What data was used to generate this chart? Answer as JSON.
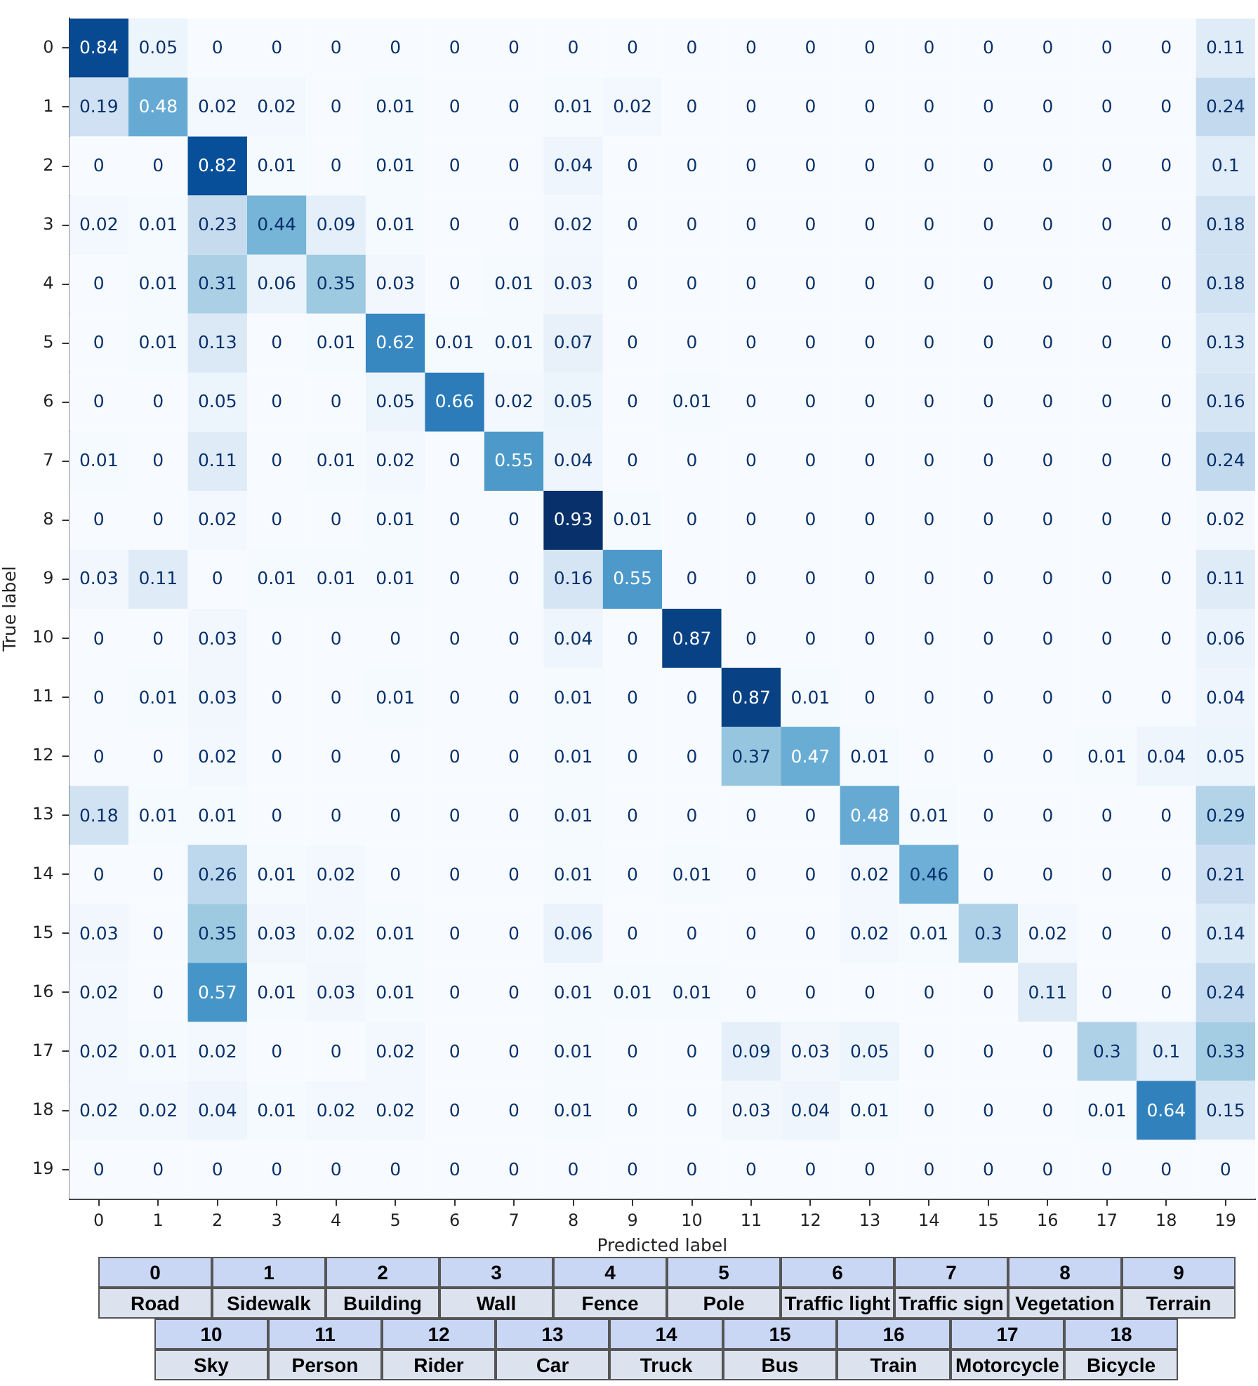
{
  "chart_data": {
    "type": "heatmap",
    "xlabel": "Predicted label",
    "ylabel": "True label",
    "categories": [
      "0",
      "1",
      "2",
      "3",
      "4",
      "5",
      "6",
      "7",
      "8",
      "9",
      "10",
      "11",
      "12",
      "13",
      "14",
      "15",
      "16",
      "17",
      "18",
      "19"
    ],
    "y_categories": [
      "0",
      "1",
      "2",
      "3",
      "4",
      "5",
      "6",
      "7",
      "8",
      "9",
      "10",
      "11",
      "12",
      "13",
      "14",
      "15",
      "16",
      "17",
      "18",
      "19"
    ],
    "cells": [
      [
        0.84,
        0.05,
        0,
        0,
        0,
        0,
        0,
        0,
        0,
        0,
        0,
        0,
        0,
        0,
        0,
        0,
        0,
        0,
        0,
        0.11
      ],
      [
        0.19,
        0.48,
        0.02,
        0.02,
        0,
        0.01,
        0,
        0,
        0.01,
        0.02,
        0,
        0,
        0,
        0,
        0,
        0,
        0,
        0,
        0,
        0.24
      ],
      [
        0,
        0,
        0.82,
        0.01,
        0,
        0.01,
        0,
        0,
        0.04,
        0,
        0,
        0,
        0,
        0,
        0,
        0,
        0,
        0,
        0,
        0.1
      ],
      [
        0.02,
        0.01,
        0.23,
        0.44,
        0.09,
        0.01,
        0,
        0,
        0.02,
        0,
        0,
        0,
        0,
        0,
        0,
        0,
        0,
        0,
        0,
        0.18
      ],
      [
        0,
        0.01,
        0.31,
        0.06,
        0.35,
        0.03,
        0,
        0.01,
        0.03,
        0,
        0,
        0,
        0,
        0,
        0,
        0,
        0,
        0,
        0,
        0.18
      ],
      [
        0,
        0.01,
        0.13,
        0,
        0.01,
        0.62,
        0.01,
        0.01,
        0.07,
        0,
        0,
        0,
        0,
        0,
        0,
        0,
        0,
        0,
        0,
        0.13
      ],
      [
        0,
        0,
        0.05,
        0,
        0,
        0.05,
        0.66,
        0.02,
        0.05,
        0,
        0.01,
        0,
        0,
        0,
        0,
        0,
        0,
        0,
        0,
        0.16
      ],
      [
        0.01,
        0,
        0.11,
        0,
        0.01,
        0.02,
        0,
        0.55,
        0.04,
        0,
        0,
        0,
        0,
        0,
        0,
        0,
        0,
        0,
        0,
        0.24
      ],
      [
        0,
        0,
        0.02,
        0,
        0,
        0.01,
        0,
        0,
        0.93,
        0.01,
        0,
        0,
        0,
        0,
        0,
        0,
        0,
        0,
        0,
        0.02
      ],
      [
        0.03,
        0.11,
        0,
        0.01,
        0.01,
        0.01,
        0,
        0,
        0.16,
        0.55,
        0,
        0,
        0,
        0,
        0,
        0,
        0,
        0,
        0,
        0.11
      ],
      [
        0,
        0,
        0.03,
        0,
        0,
        0,
        0,
        0,
        0.04,
        0,
        0.87,
        0,
        0,
        0,
        0,
        0,
        0,
        0,
        0,
        0.06
      ],
      [
        0,
        0.01,
        0.03,
        0,
        0,
        0.01,
        0,
        0,
        0.01,
        0,
        0,
        0.87,
        0.01,
        0,
        0,
        0,
        0,
        0,
        0,
        0.04
      ],
      [
        0,
        0,
        0.02,
        0,
        0,
        0,
        0,
        0,
        0.01,
        0,
        0,
        0.37,
        0.47,
        0.01,
        0,
        0,
        0,
        0.01,
        0.04,
        0.05
      ],
      [
        0.18,
        0.01,
        0.01,
        0,
        0,
        0,
        0,
        0,
        0.01,
        0,
        0,
        0,
        0,
        0.48,
        0.01,
        0,
        0,
        0,
        0,
        0.29
      ],
      [
        0,
        0,
        0.26,
        0.01,
        0.02,
        0,
        0,
        0,
        0.01,
        0,
        0.01,
        0,
        0,
        0.02,
        0.46,
        0,
        0,
        0,
        0,
        0.21
      ],
      [
        0.03,
        0,
        0.35,
        0.03,
        0.02,
        0.01,
        0,
        0,
        0.06,
        0,
        0,
        0,
        0,
        0.02,
        0.01,
        0.3,
        0.02,
        0,
        0,
        0.14
      ],
      [
        0.02,
        0,
        0.57,
        0.01,
        0.03,
        0.01,
        0,
        0,
        0.01,
        0.01,
        0.01,
        0,
        0,
        0,
        0,
        0,
        0.11,
        0,
        0,
        0.24
      ],
      [
        0.02,
        0.01,
        0.02,
        0,
        0,
        0.02,
        0,
        0,
        0.01,
        0,
        0,
        0.09,
        0.03,
        0.05,
        0,
        0,
        0,
        0.3,
        0.1,
        0.33
      ],
      [
        0.02,
        0.02,
        0.04,
        0.01,
        0.02,
        0.02,
        0,
        0,
        0.01,
        0,
        0,
        0.03,
        0.04,
        0.01,
        0,
        0,
        0,
        0.01,
        0.64,
        0.15
      ],
      [
        0,
        0,
        0,
        0,
        0,
        0,
        0,
        0,
        0,
        0,
        0,
        0,
        0,
        0,
        0,
        0,
        0,
        0,
        0,
        0
      ]
    ],
    "data_labels": true,
    "grid": false,
    "annotations": [
      "Road",
      "Sidewalk",
      "Building",
      "Wall",
      "Fence",
      "Pole",
      "Traffic light",
      "Traffic sign",
      "Vegetation",
      "Terrain",
      "Sky",
      "Person",
      "Rider",
      "Car",
      "Truck",
      "Bus",
      "Train",
      "Motorcycle",
      "Bicycle"
    ]
  }
}
